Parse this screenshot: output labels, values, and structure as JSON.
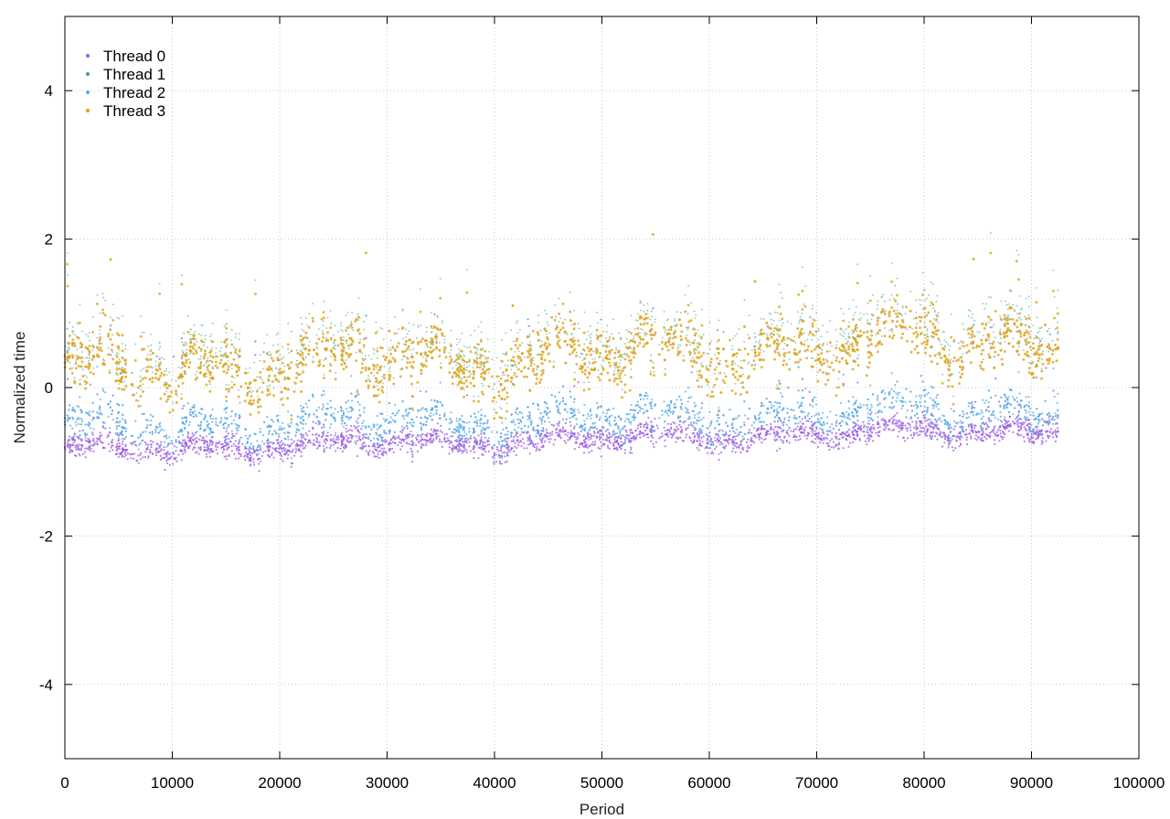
{
  "chart_data": {
    "type": "scatter",
    "xlabel": "Period",
    "ylabel": "Normalized time",
    "xlim": [
      0,
      100000
    ],
    "ylim": [
      -5,
      5
    ],
    "x_ticks": [
      0,
      10000,
      20000,
      30000,
      40000,
      50000,
      60000,
      70000,
      80000,
      90000,
      100000
    ],
    "y_ticks": [
      -4,
      -2,
      0,
      2,
      4
    ],
    "grid": true,
    "legend_position": "top-left",
    "x_extent": [
      0,
      92500
    ],
    "series": [
      {
        "name": "Thread 0",
        "color": "#9b59e0",
        "approx_y_range": [
          -1.1,
          0.3
        ]
      },
      {
        "name": "Thread 1",
        "color": "#3a9e8c",
        "approx_y_range": [
          -0.6,
          2.0
        ]
      },
      {
        "name": "Thread 2",
        "color": "#5aa9e6",
        "approx_y_range": [
          -1.0,
          0.6
        ]
      },
      {
        "name": "Thread 3",
        "color": "#dca316",
        "approx_y_range": [
          -0.5,
          2.2
        ]
      }
    ]
  }
}
